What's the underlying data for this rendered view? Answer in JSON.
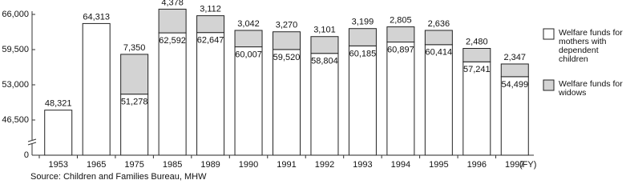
{
  "chart_data": {
    "type": "stacked_bar",
    "categories": [
      "1953",
      "1965",
      "1975",
      "1985",
      "1989",
      "1990",
      "1991",
      "1992",
      "1993",
      "1994",
      "1995",
      "1996",
      "1997"
    ],
    "x_unit": "(FY)",
    "source": "Source:  Children and Families Bureau, MHW",
    "series": [
      {
        "name": "Welfare funds for mothers with dependent children",
        "color": "#ffffff",
        "values": [
          48321,
          64313,
          51278,
          62592,
          62647,
          60007,
          59520,
          58804,
          60185,
          60897,
          60414,
          57241,
          54499
        ],
        "value_labels": [
          "48,321",
          "64,313",
          "51,278",
          "62,592",
          "62,647",
          "60,007",
          "59,520",
          "58,804",
          "60,185",
          "60,897",
          "60,414",
          "57,241",
          "54,499"
        ]
      },
      {
        "name": "Welfare funds for widows",
        "color": "#d3d3d3",
        "values": [
          null,
          null,
          7350,
          4378,
          3112,
          3042,
          3270,
          3101,
          3199,
          2805,
          2636,
          2480,
          2347
        ],
        "value_labels": [
          null,
          null,
          "7,350",
          "4,378",
          "3,112",
          "3,042",
          "3,270",
          "3,101",
          "3,199",
          "2,805",
          "2,636",
          "2,480",
          "2,347"
        ]
      }
    ],
    "ylim": [
      0,
      66000
    ],
    "yticks": [
      0,
      {
        "value": 46500,
        "label": "46,500"
      },
      {
        "value": 53000,
        "label": "53,000"
      },
      {
        "value": 59500,
        "label": "59,500"
      },
      {
        "value": 66000,
        "label": "66,000"
      }
    ],
    "axis_break": true,
    "legend": "right"
  }
}
